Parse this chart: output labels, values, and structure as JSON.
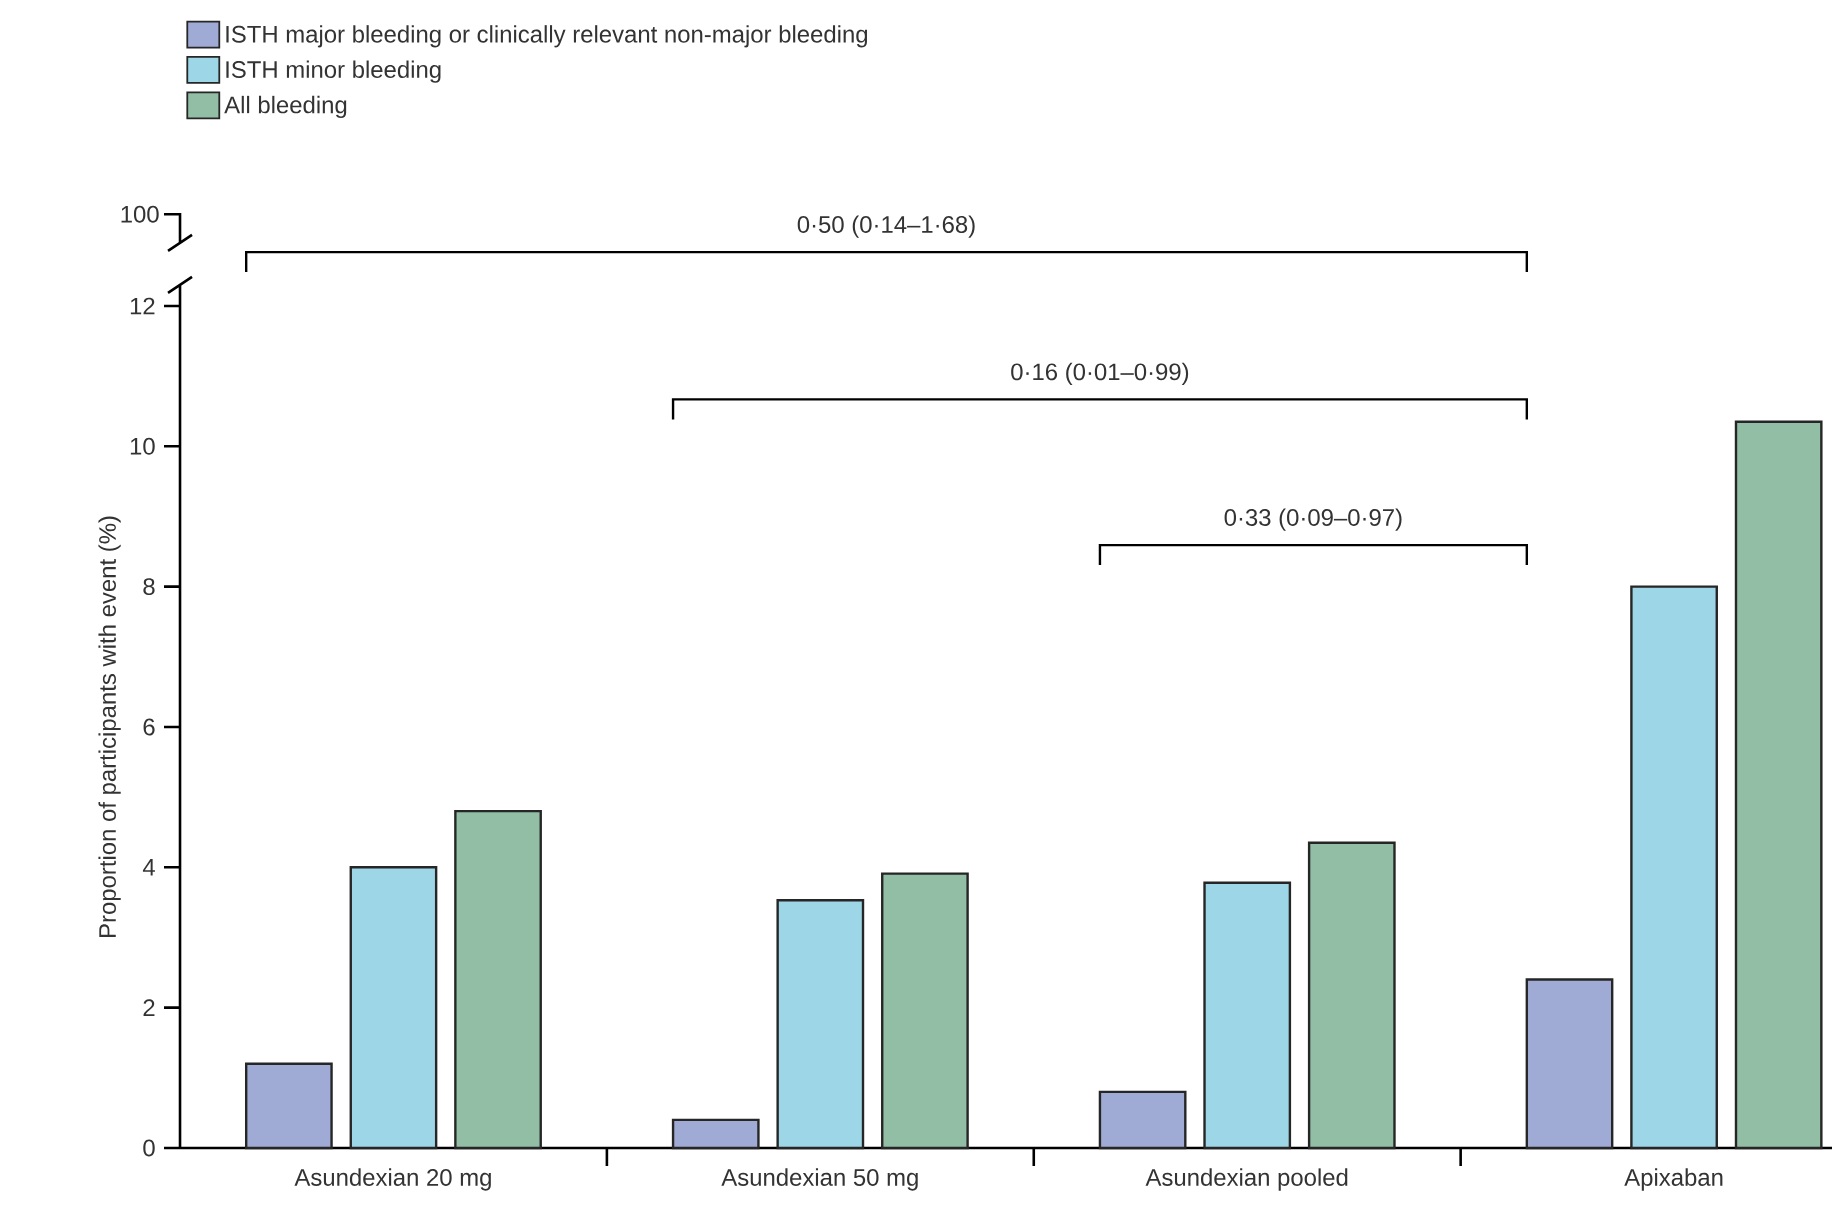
{
  "chart_data": {
    "type": "bar",
    "categories": [
      "Asundexian 20 mg",
      "Asundexian 50 mg",
      "Asundexian pooled",
      "Apixaban"
    ],
    "series": [
      {
        "name": "ISTH major bleeding or clinically relevant non-major bleeding",
        "color": "#9fabd4",
        "values": [
          1.2,
          0.4,
          0.8,
          2.4
        ]
      },
      {
        "name": "ISTH minor bleeding",
        "color": "#9cd6e7",
        "values": [
          4.0,
          3.53,
          3.78,
          8.0
        ]
      },
      {
        "name": "All bleeding",
        "color": "#91bea4",
        "values": [
          4.8,
          3.91,
          4.35,
          10.35
        ]
      }
    ],
    "ylabel": "Proportion of participants with event (%)",
    "ylim": [
      0,
      12
    ],
    "yticks": [
      0,
      2,
      4,
      6,
      8,
      10,
      12
    ],
    "annotations": [
      "100",
      "0·50 (0·14–1·68)",
      "0·16 (0·01–0·99)",
      "0·33 (0·09–0·97)"
    ],
    "legend": "top left",
    "grid": false
  }
}
